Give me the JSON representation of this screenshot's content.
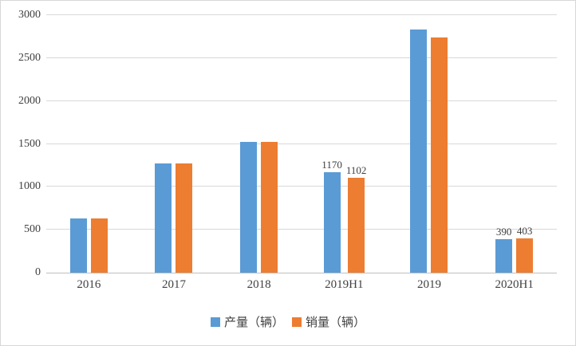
{
  "chart_data": {
    "type": "bar",
    "categories": [
      "2016",
      "2017",
      "2018",
      "2019H1",
      "2019",
      "2020H1"
    ],
    "series": [
      {
        "name": "产量（辆）",
        "color": "#5B9BD5",
        "values": [
          630,
          1270,
          1520,
          1170,
          2830,
          390
        ]
      },
      {
        "name": "销量（辆）",
        "color": "#ED7D31",
        "values": [
          630,
          1270,
          1520,
          1102,
          2740,
          403
        ]
      }
    ],
    "labeled_categories": [
      "2019H1",
      "2020H1"
    ],
    "title": "",
    "xlabel": "",
    "ylabel": "",
    "ylim": [
      0,
      3000
    ],
    "yticks": [
      0,
      500,
      1000,
      1500,
      2000,
      2500,
      3000
    ],
    "grid": true,
    "legend_position": "bottom",
    "colors": {
      "gridline": "#d9d9d9",
      "axis_line": "#bfbfbf",
      "text": "#404040",
      "background": "#ffffff"
    }
  }
}
